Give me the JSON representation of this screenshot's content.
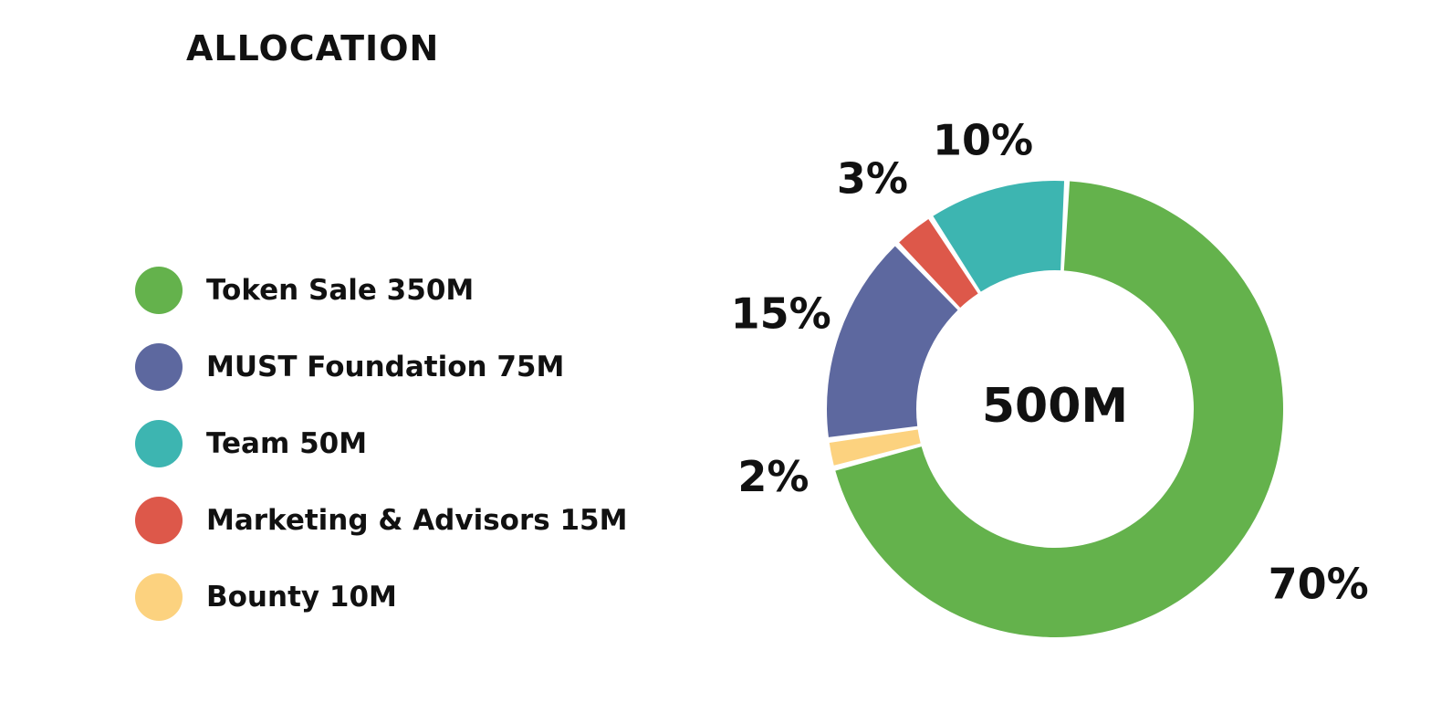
{
  "title": "ALLOCATION",
  "chart_data": {
    "type": "pie",
    "style": "donut",
    "center_label": "500M",
    "slices": [
      {
        "name": "Token Sale",
        "amount": "350M",
        "value": 70,
        "label": "70%",
        "color": "#64b24c"
      },
      {
        "name": "Bounty",
        "amount": "10M",
        "value": 2,
        "label": "2%",
        "color": "#fcd27f"
      },
      {
        "name": "MUST Foundation",
        "amount": "75M",
        "value": 15,
        "label": "15%",
        "color": "#5d689f"
      },
      {
        "name": "Marketing & Advisors",
        "amount": "15M",
        "value": 3,
        "label": "3%",
        "color": "#dd584a"
      },
      {
        "name": "Team",
        "amount": "50M",
        "value": 10,
        "label": "10%",
        "color": "#3db5b1"
      }
    ]
  },
  "legend": [
    {
      "label": "Token Sale 350M",
      "color": "#64b24c"
    },
    {
      "label": "MUST Foundation 75M",
      "color": "#5d689f"
    },
    {
      "label": "Team 50M",
      "color": "#3db5b1"
    },
    {
      "label": "Marketing & Advisors 15M",
      "color": "#dd584a"
    },
    {
      "label": "Bounty 10M",
      "color": "#fcd27f"
    }
  ]
}
